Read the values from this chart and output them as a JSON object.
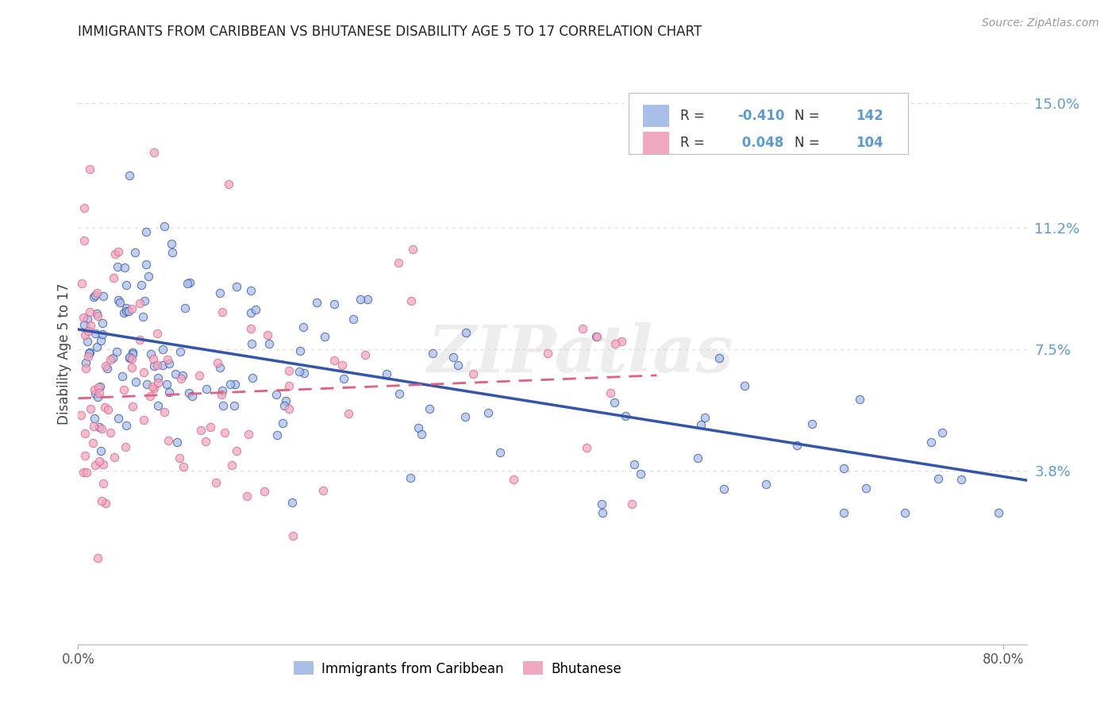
{
  "title": "IMMIGRANTS FROM CARIBBEAN VS BHUTANESE DISABILITY AGE 5 TO 17 CORRELATION CHART",
  "source": "Source: ZipAtlas.com",
  "ylabel": "Disability Age 5 to 17",
  "right_ytick_vals": [
    0.038,
    0.075,
    0.112,
    0.15
  ],
  "right_yticklabels": [
    "3.8%",
    "7.5%",
    "11.2%",
    "15.0%"
  ],
  "xmin": 0.0,
  "xmax": 0.82,
  "ymin": -0.015,
  "ymax": 0.162,
  "r_blue": -0.41,
  "n_blue": 142,
  "r_pink": 0.048,
  "n_pink": 104,
  "color_blue": "#AABFE8",
  "color_pink": "#F0A8C0",
  "color_blue_line": "#3355AA",
  "color_pink_line": "#E06080",
  "color_axis_right": "#5B9BD5",
  "color_legend_blue": "#5B9BD5",
  "background": "#FFFFFF",
  "grid_color": "#DDDDDD",
  "watermark": "ZIPatlas",
  "label_blue": "Immigrants from Caribbean",
  "label_pink": "Bhutanese",
  "blue_trend_x0": 0.0,
  "blue_trend_y0": 0.081,
  "blue_trend_x1": 0.82,
  "blue_trend_y1": 0.035,
  "pink_trend_x0": 0.0,
  "pink_trend_y0": 0.06,
  "pink_trend_x1": 0.5,
  "pink_trend_y1": 0.067
}
